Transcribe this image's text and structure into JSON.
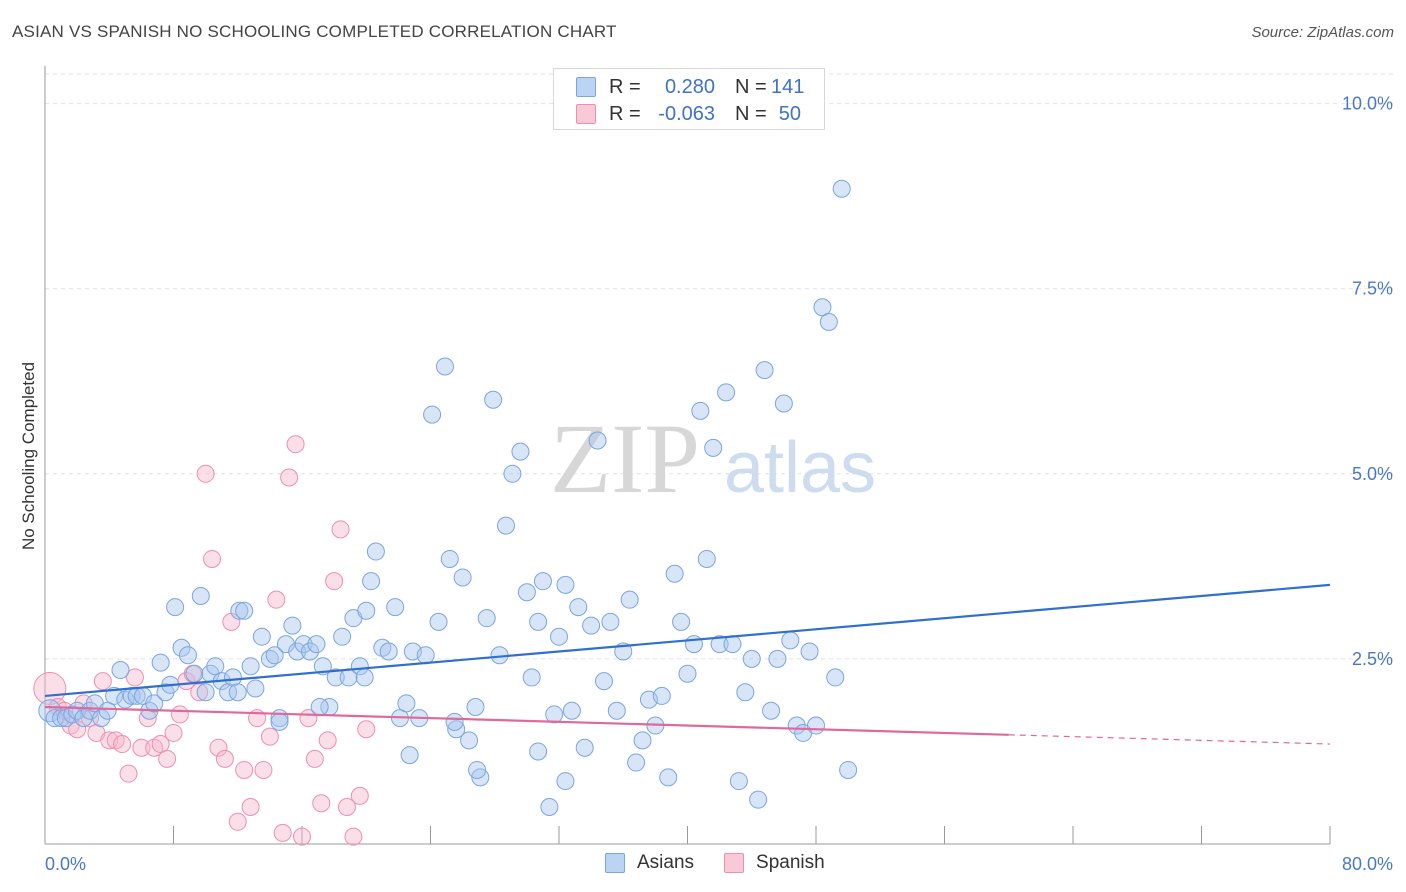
{
  "title": "ASIAN VS SPANISH NO SCHOOLING COMPLETED CORRELATION CHART",
  "source": "Source: ZipAtlas.com",
  "watermark": {
    "zip": "ZIP",
    "atlas": "atlas"
  },
  "colors": {
    "asian_fill": "#a9c6ee",
    "asian_stroke": "#7aa6e0",
    "asian_line": "#2f6fd0",
    "spanish_fill": "#f7b8cc",
    "spanish_stroke": "#ee8fb0",
    "spanish_line": "#e0689a",
    "axis_text": "#4a78c8",
    "grid": "#e2e2e2"
  },
  "legend_top": {
    "asians": {
      "r_label": "R =",
      "r_value": "0.280",
      "n_label": "N =",
      "n_value": "141"
    },
    "spanish": {
      "r_label": "R =",
      "r_value": "-0.063",
      "n_label": "N =",
      "n_value": "50"
    }
  },
  "legend_bottom": {
    "asians": "Asians",
    "spanish": "Spanish"
  },
  "chart_data": {
    "type": "scatter",
    "title": "ASIAN VS SPANISH NO SCHOOLING COMPLETED CORRELATION CHART",
    "xlabel": "",
    "ylabel": "No Schooling Completed",
    "xlim": [
      0,
      80
    ],
    "ylim": [
      0,
      10.4
    ],
    "x_tick_labels": [
      "0.0%",
      "80.0%"
    ],
    "y_ticks": [
      {
        "value": 2.5,
        "label": "2.5%"
      },
      {
        "value": 5.0,
        "label": "5.0%"
      },
      {
        "value": 7.5,
        "label": "7.5%"
      },
      {
        "value": 10.0,
        "label": "10.0%"
      }
    ],
    "grid": true,
    "legend": "top-center",
    "series": [
      {
        "name": "Asians",
        "color": "#a9c6ee",
        "trend": {
          "x": [
            0,
            80
          ],
          "y": [
            2.0,
            3.5
          ],
          "dashed_from": null
        },
        "points": [
          [
            0.3,
            1.8
          ],
          [
            0.6,
            1.7
          ],
          [
            1.0,
            1.7
          ],
          [
            1.3,
            1.7
          ],
          [
            1.7,
            1.75
          ],
          [
            2.0,
            1.8
          ],
          [
            2.4,
            1.7
          ],
          [
            2.8,
            1.8
          ],
          [
            3.1,
            1.9
          ],
          [
            3.5,
            1.7
          ],
          [
            3.9,
            1.8
          ],
          [
            4.3,
            2.0
          ],
          [
            4.7,
            2.35
          ],
          [
            5.0,
            1.95
          ],
          [
            5.4,
            2.0
          ],
          [
            5.7,
            2.0
          ],
          [
            6.1,
            2.0
          ],
          [
            6.5,
            1.8
          ],
          [
            6.8,
            1.9
          ],
          [
            7.2,
            2.45
          ],
          [
            7.5,
            2.05
          ],
          [
            7.8,
            2.15
          ],
          [
            8.1,
            3.2
          ],
          [
            8.5,
            2.65
          ],
          [
            8.9,
            2.55
          ],
          [
            9.3,
            2.3
          ],
          [
            9.7,
            3.35
          ],
          [
            10.0,
            2.05
          ],
          [
            10.3,
            2.3
          ],
          [
            10.6,
            2.4
          ],
          [
            11.0,
            2.2
          ],
          [
            11.4,
            2.05
          ],
          [
            11.7,
            2.25
          ],
          [
            12.1,
            3.15
          ],
          [
            12.4,
            3.15
          ],
          [
            12.8,
            2.4
          ],
          [
            13.1,
            2.1
          ],
          [
            13.5,
            2.8
          ],
          [
            14.0,
            2.5
          ],
          [
            14.3,
            2.55
          ],
          [
            14.6,
            1.7
          ],
          [
            15.0,
            2.7
          ],
          [
            15.4,
            2.95
          ],
          [
            15.7,
            2.6
          ],
          [
            16.1,
            2.7
          ],
          [
            16.5,
            2.6
          ],
          [
            16.9,
            2.7
          ],
          [
            17.3,
            2.4
          ],
          [
            17.7,
            1.85
          ],
          [
            18.1,
            2.25
          ],
          [
            18.5,
            2.8
          ],
          [
            18.9,
            2.25
          ],
          [
            19.2,
            3.05
          ],
          [
            19.6,
            2.4
          ],
          [
            20.0,
            3.15
          ],
          [
            20.3,
            3.55
          ],
          [
            20.6,
            3.95
          ],
          [
            21.0,
            2.65
          ],
          [
            21.4,
            2.6
          ],
          [
            21.8,
            3.2
          ],
          [
            22.1,
            1.7
          ],
          [
            22.5,
            1.9
          ],
          [
            22.9,
            2.6
          ],
          [
            23.3,
            1.7
          ],
          [
            23.7,
            2.55
          ],
          [
            24.1,
            5.8
          ],
          [
            24.5,
            3.0
          ],
          [
            24.9,
            6.45
          ],
          [
            25.2,
            3.85
          ],
          [
            25.6,
            1.55
          ],
          [
            26.0,
            3.6
          ],
          [
            26.4,
            1.4
          ],
          [
            26.8,
            1.85
          ],
          [
            27.1,
            0.9
          ],
          [
            27.5,
            3.05
          ],
          [
            27.9,
            6.0
          ],
          [
            28.3,
            2.55
          ],
          [
            28.7,
            4.3
          ],
          [
            29.1,
            5.0
          ],
          [
            29.6,
            5.3
          ],
          [
            30.0,
            3.4
          ],
          [
            30.3,
            2.25
          ],
          [
            30.7,
            3.0
          ],
          [
            31.0,
            3.55
          ],
          [
            31.4,
            0.5
          ],
          [
            31.7,
            1.75
          ],
          [
            32.0,
            2.8
          ],
          [
            32.4,
            3.5
          ],
          [
            32.8,
            1.8
          ],
          [
            33.2,
            3.2
          ],
          [
            33.6,
            1.3
          ],
          [
            34.0,
            2.95
          ],
          [
            34.4,
            5.45
          ],
          [
            34.8,
            2.2
          ],
          [
            35.2,
            3.0
          ],
          [
            35.6,
            1.8
          ],
          [
            36.0,
            2.6
          ],
          [
            36.4,
            3.3
          ],
          [
            36.8,
            1.1
          ],
          [
            37.2,
            1.4
          ],
          [
            37.6,
            1.95
          ],
          [
            38.0,
            1.6
          ],
          [
            38.4,
            2.0
          ],
          [
            38.8,
            0.9
          ],
          [
            39.2,
            3.65
          ],
          [
            39.6,
            3.0
          ],
          [
            40.0,
            2.3
          ],
          [
            40.4,
            2.7
          ],
          [
            40.8,
            5.85
          ],
          [
            41.2,
            3.85
          ],
          [
            41.6,
            5.35
          ],
          [
            42.0,
            2.7
          ],
          [
            42.4,
            6.1
          ],
          [
            42.8,
            2.7
          ],
          [
            43.2,
            0.85
          ],
          [
            43.6,
            2.05
          ],
          [
            44.0,
            2.5
          ],
          [
            44.4,
            0.6
          ],
          [
            44.8,
            6.4
          ],
          [
            45.2,
            1.8
          ],
          [
            45.6,
            2.5
          ],
          [
            46.0,
            5.95
          ],
          [
            46.4,
            2.75
          ],
          [
            46.8,
            1.6
          ],
          [
            47.2,
            1.5
          ],
          [
            47.6,
            2.6
          ],
          [
            48.0,
            1.6
          ],
          [
            48.4,
            7.25
          ],
          [
            48.8,
            7.05
          ],
          [
            49.2,
            2.25
          ],
          [
            49.6,
            8.85
          ],
          [
            50.0,
            1.0
          ],
          [
            14.6,
            1.65
          ],
          [
            22.7,
            1.2
          ],
          [
            25.5,
            1.65
          ],
          [
            26.9,
            1.0
          ],
          [
            30.7,
            1.25
          ],
          [
            32.4,
            0.85
          ],
          [
            17.1,
            1.85
          ],
          [
            19.9,
            2.25
          ],
          [
            12.0,
            2.05
          ]
        ]
      },
      {
        "name": "Spanish",
        "color": "#f7b8cc",
        "trend": {
          "x": [
            0,
            80
          ],
          "y": [
            1.85,
            1.35
          ],
          "dashed_from": 60
        },
        "points": [
          [
            0.3,
            2.1
          ],
          [
            0.8,
            1.85
          ],
          [
            1.2,
            1.8
          ],
          [
            1.6,
            1.6
          ],
          [
            2.0,
            1.55
          ],
          [
            2.4,
            1.9
          ],
          [
            2.8,
            1.7
          ],
          [
            3.2,
            1.5
          ],
          [
            3.6,
            2.2
          ],
          [
            4.0,
            1.4
          ],
          [
            4.4,
            1.4
          ],
          [
            4.8,
            1.35
          ],
          [
            5.2,
            0.95
          ],
          [
            5.6,
            2.25
          ],
          [
            6.0,
            1.3
          ],
          [
            6.4,
            1.7
          ],
          [
            6.8,
            1.3
          ],
          [
            7.2,
            1.35
          ],
          [
            7.6,
            1.15
          ],
          [
            8.0,
            1.5
          ],
          [
            8.4,
            1.75
          ],
          [
            8.8,
            2.2
          ],
          [
            9.2,
            2.3
          ],
          [
            9.6,
            2.05
          ],
          [
            10.0,
            5.0
          ],
          [
            10.4,
            3.85
          ],
          [
            10.8,
            1.3
          ],
          [
            11.2,
            1.15
          ],
          [
            11.6,
            3.0
          ],
          [
            12.0,
            0.3
          ],
          [
            12.4,
            1.0
          ],
          [
            12.8,
            0.5
          ],
          [
            13.2,
            1.7
          ],
          [
            13.6,
            1.0
          ],
          [
            14.0,
            1.45
          ],
          [
            14.4,
            3.3
          ],
          [
            14.8,
            0.15
          ],
          [
            15.2,
            4.95
          ],
          [
            15.6,
            5.4
          ],
          [
            16.0,
            0.1
          ],
          [
            16.4,
            1.7
          ],
          [
            16.8,
            1.15
          ],
          [
            17.2,
            0.55
          ],
          [
            17.6,
            1.4
          ],
          [
            18.0,
            3.55
          ],
          [
            18.4,
            4.25
          ],
          [
            18.8,
            0.5
          ],
          [
            19.2,
            0.1
          ],
          [
            19.6,
            0.65
          ],
          [
            20.0,
            1.55
          ]
        ]
      }
    ]
  }
}
